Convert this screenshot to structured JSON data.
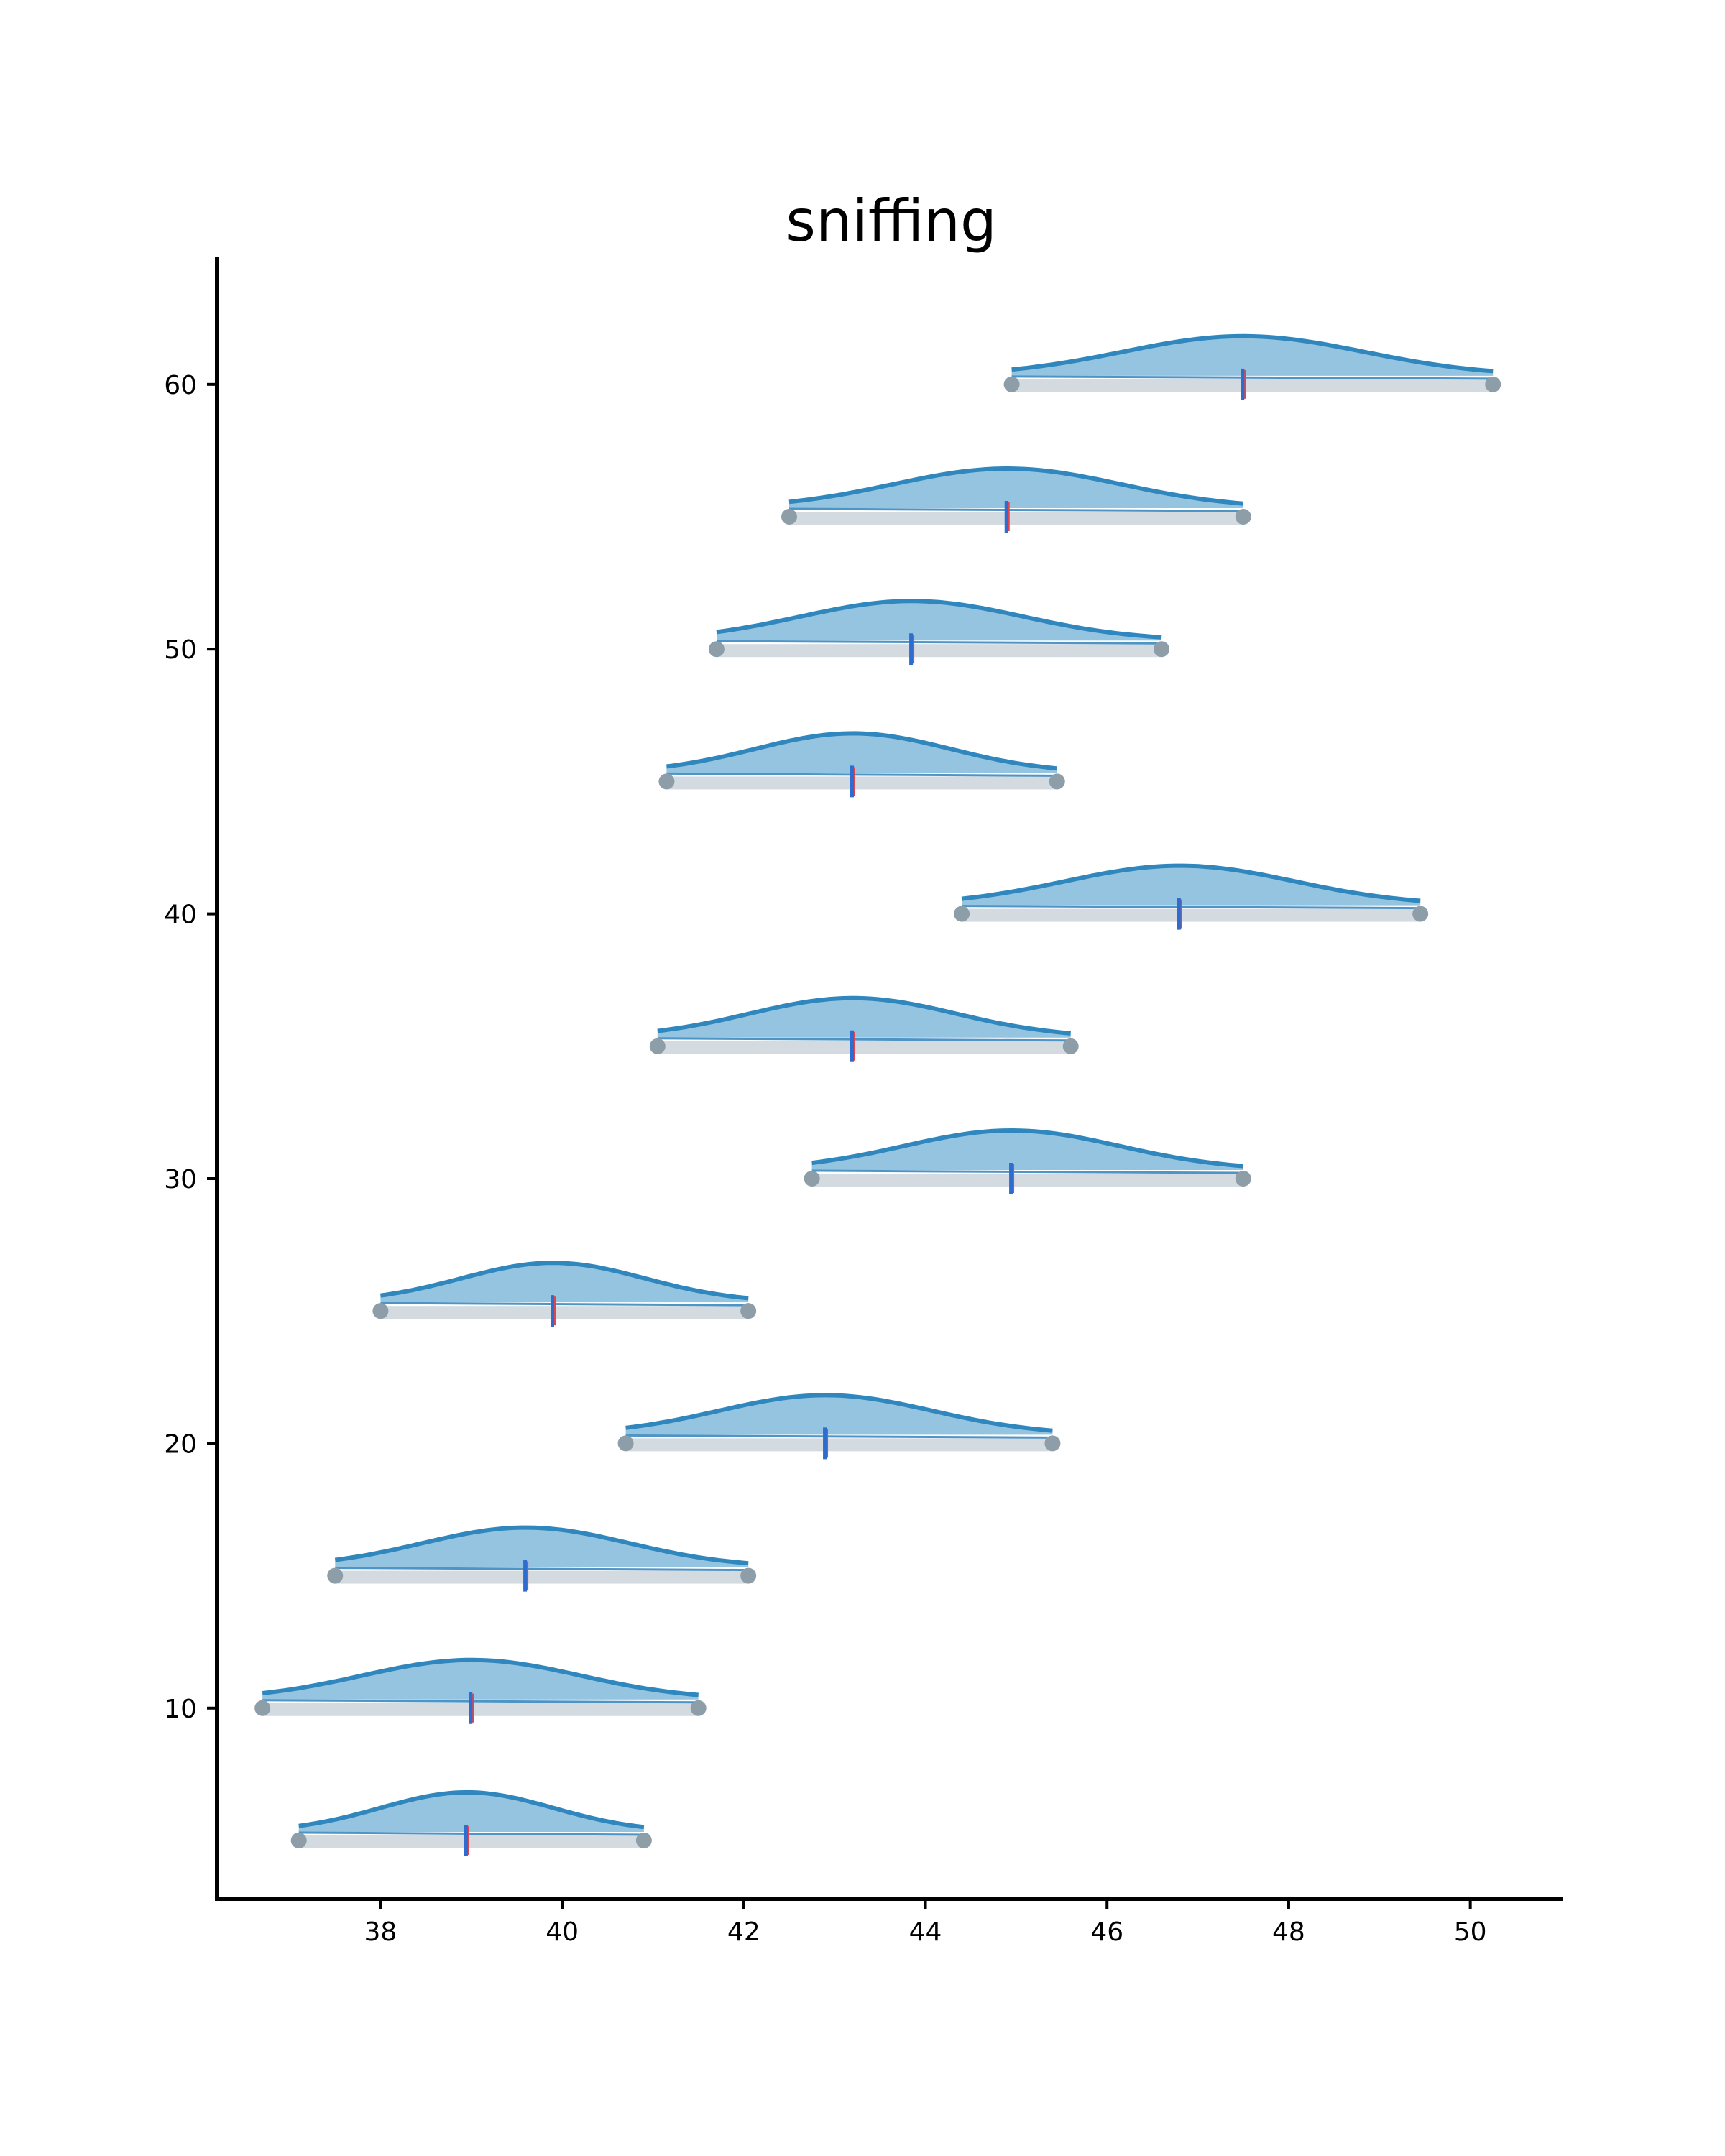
{
  "chart_data": {
    "type": "ridgeline",
    "title": "sniffing",
    "xlabel": "",
    "ylabel": "",
    "xlim": [
      36.2,
      51.0
    ],
    "ylim": [
      2.8,
      64.8
    ],
    "xticks": [
      "38",
      "40",
      "42",
      "44",
      "46",
      "48",
      "50"
    ],
    "yticks": [
      "10",
      "20",
      "30",
      "40",
      "50",
      "60"
    ],
    "grid": false,
    "legend": "none",
    "colors": {
      "fill": "#95c4e0",
      "line": "#2f87bd",
      "ci_bar": "#d3dbe1",
      "endpoint": "#8d9ea8",
      "mean": "#2f6cd0",
      "median": "#e0454d"
    },
    "series": [
      {
        "y": 5,
        "low": 37.1,
        "high": 40.9,
        "mean": 38.95
      },
      {
        "y": 10,
        "low": 36.7,
        "high": 41.5,
        "mean": 39.0
      },
      {
        "y": 15,
        "low": 37.5,
        "high": 42.05,
        "mean": 39.6
      },
      {
        "y": 20,
        "low": 40.7,
        "high": 45.4,
        "mean": 42.9
      },
      {
        "y": 25,
        "low": 38.0,
        "high": 42.05,
        "mean": 39.9
      },
      {
        "y": 30,
        "low": 42.75,
        "high": 47.5,
        "mean": 44.95
      },
      {
        "y": 35,
        "low": 41.05,
        "high": 45.6,
        "mean": 43.2
      },
      {
        "y": 40,
        "low": 44.4,
        "high": 49.45,
        "mean": 46.8
      },
      {
        "y": 45,
        "low": 41.15,
        "high": 45.45,
        "mean": 43.2
      },
      {
        "y": 50,
        "low": 41.7,
        "high": 46.6,
        "mean": 43.85
      },
      {
        "y": 55,
        "low": 42.5,
        "high": 47.5,
        "mean": 44.9
      },
      {
        "y": 60,
        "low": 44.95,
        "high": 50.25,
        "mean": 47.5
      }
    ]
  }
}
